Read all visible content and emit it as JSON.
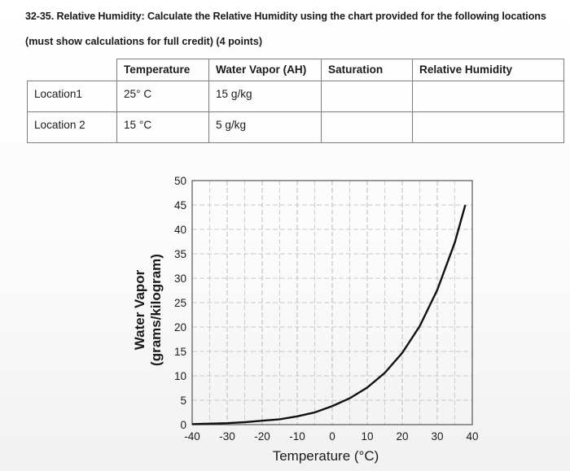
{
  "question": {
    "title": "32-35. Relative Humidity: Calculate the Relative Humidity using the chart provided for the following locations",
    "subtitle": "(must show calculations for full credit) (4 points)"
  },
  "table": {
    "headers": [
      "",
      "Temperature",
      "Water Vapor (AH)",
      "Saturation",
      "Relative Humidity"
    ],
    "rows": [
      [
        "Location1",
        "25° C",
        "15 g/kg",
        "",
        ""
      ],
      [
        "Location 2",
        "15 °C",
        "5 g/kg",
        "",
        ""
      ]
    ]
  },
  "chart_data": {
    "type": "line",
    "xlabel": "Temperature (°C)",
    "ylabel_line1": "Water Vapor",
    "ylabel_line2": "(grams/kilogram)",
    "xlim": [
      -40,
      40
    ],
    "ylim": [
      0,
      50
    ],
    "x_ticks": [
      "-40",
      "-30",
      "-20",
      "-10",
      "0",
      "10",
      "20",
      "30",
      "40"
    ],
    "y_ticks": [
      "0",
      "5",
      "10",
      "15",
      "20",
      "25",
      "30",
      "35",
      "40",
      "45",
      "50"
    ],
    "grid": true,
    "series": [
      {
        "x": [
          -40,
          -35,
          -30,
          -25,
          -20,
          -15,
          -10,
          -5,
          0,
          5,
          10,
          15,
          20,
          25,
          30,
          35,
          38
        ],
        "y": [
          0.1,
          0.2,
          0.3,
          0.5,
          0.8,
          1.1,
          1.7,
          2.5,
          3.8,
          5.4,
          7.6,
          10.6,
          14.7,
          20.2,
          27.6,
          37.3,
          45
        ]
      }
    ],
    "colors": {
      "curve": "#111111",
      "grid": "#c9c9c9",
      "frame": "#555555"
    }
  }
}
